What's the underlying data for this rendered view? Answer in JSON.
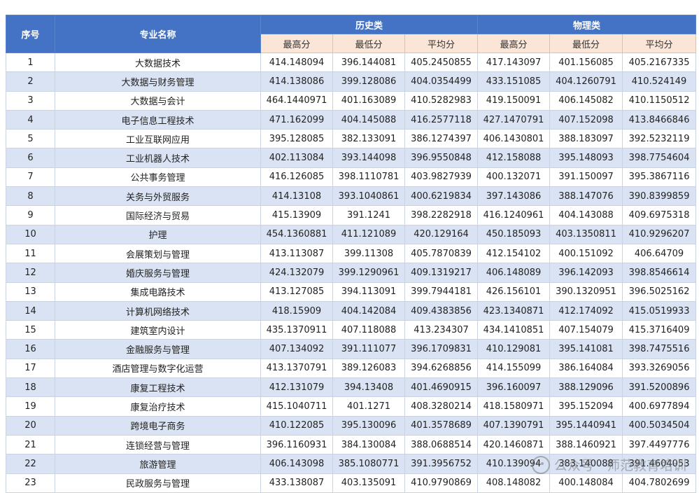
{
  "header": {
    "col_no": "序号",
    "col_name": "专业名称",
    "group_history": "历史类",
    "group_physics": "物理类",
    "sub_max": "最高分",
    "sub_min": "最低分",
    "sub_avg": "平均分"
  },
  "rows": [
    {
      "no": "1",
      "name": "大数据技术",
      "h_max": "414.148094",
      "h_min": "396.144081",
      "h_avg": "405.2450855",
      "p_max": "417.143097",
      "p_min": "401.156085",
      "p_avg": "405.2167335"
    },
    {
      "no": "2",
      "name": "大数据与财务管理",
      "h_max": "414.138086",
      "h_min": "399.128086",
      "h_avg": "404.0354499",
      "p_max": "433.151085",
      "p_min": "404.1260791",
      "p_avg": "410.524149"
    },
    {
      "no": "3",
      "name": "大数据与会计",
      "h_max": "464.1440971",
      "h_min": "401.163089",
      "h_avg": "410.5282983",
      "p_max": "419.150091",
      "p_min": "406.145082",
      "p_avg": "410.1150512"
    },
    {
      "no": "4",
      "name": "电子信息工程技术",
      "h_max": "471.162099",
      "h_min": "404.145088",
      "h_avg": "416.2577118",
      "p_max": "427.1470791",
      "p_min": "407.152098",
      "p_avg": "413.8466846"
    },
    {
      "no": "5",
      "name": "工业互联网应用",
      "h_max": "395.128085",
      "h_min": "382.133091",
      "h_avg": "386.1274397",
      "p_max": "406.1430801",
      "p_min": "388.183097",
      "p_avg": "392.5232119"
    },
    {
      "no": "6",
      "name": "工业机器人技术",
      "h_max": "402.113084",
      "h_min": "393.144098",
      "h_avg": "396.9550848",
      "p_max": "412.158088",
      "p_min": "395.148093",
      "p_avg": "398.7754604"
    },
    {
      "no": "7",
      "name": "公共事务管理",
      "h_max": "416.126085",
      "h_min": "398.1110781",
      "h_avg": "403.9827939",
      "p_max": "400.132071",
      "p_min": "391.150097",
      "p_avg": "395.3867116"
    },
    {
      "no": "8",
      "name": "关务与外贸服务",
      "h_max": "414.13108",
      "h_min": "393.1040861",
      "h_avg": "400.6219834",
      "p_max": "397.143086",
      "p_min": "388.147076",
      "p_avg": "390.8399859"
    },
    {
      "no": "9",
      "name": "国际经济与贸易",
      "h_max": "415.13909",
      "h_min": "391.1241",
      "h_avg": "398.2282918",
      "p_max": "416.1240961",
      "p_min": "404.143088",
      "p_avg": "409.6975318"
    },
    {
      "no": "10",
      "name": "护理",
      "h_max": "454.1360881",
      "h_min": "411.121089",
      "h_avg": "420.129164",
      "p_max": "450.185093",
      "p_min": "403.1350811",
      "p_avg": "410.9296207"
    },
    {
      "no": "11",
      "name": "会展策划与管理",
      "h_max": "413.113087",
      "h_min": "399.11308",
      "h_avg": "405.7870839",
      "p_max": "412.154102",
      "p_min": "400.151092",
      "p_avg": "406.64709"
    },
    {
      "no": "12",
      "name": "婚庆服务与管理",
      "h_max": "424.132079",
      "h_min": "399.1290961",
      "h_avg": "409.1319217",
      "p_max": "406.148089",
      "p_min": "396.142093",
      "p_avg": "398.8546614"
    },
    {
      "no": "13",
      "name": "集成电路技术",
      "h_max": "413.127085",
      "h_min": "394.113091",
      "h_avg": "399.7944181",
      "p_max": "426.156101",
      "p_min": "390.1320951",
      "p_avg": "396.5025162"
    },
    {
      "no": "14",
      "name": "计算机网络技术",
      "h_max": "418.15909",
      "h_min": "404.142084",
      "h_avg": "409.4383856",
      "p_max": "423.1340871",
      "p_min": "412.174092",
      "p_avg": "415.0519933"
    },
    {
      "no": "15",
      "name": "建筑室内设计",
      "h_max": "435.1370911",
      "h_min": "407.118088",
      "h_avg": "413.234307",
      "p_max": "434.1410851",
      "p_min": "407.154079",
      "p_avg": "415.3716409"
    },
    {
      "no": "16",
      "name": "金融服务与管理",
      "h_max": "407.134092",
      "h_min": "391.111077",
      "h_avg": "396.1709831",
      "p_max": "410.129081",
      "p_min": "395.141081",
      "p_avg": "398.7475516"
    },
    {
      "no": "17",
      "name": "酒店管理与数字化运营",
      "h_max": "413.1370791",
      "h_min": "389.126083",
      "h_avg": "394.6268856",
      "p_max": "414.155099",
      "p_min": "386.164084",
      "p_avg": "393.3269056"
    },
    {
      "no": "18",
      "name": "康复工程技术",
      "h_max": "412.131079",
      "h_min": "394.13408",
      "h_avg": "401.4690915",
      "p_max": "396.160097",
      "p_min": "388.129096",
      "p_avg": "391.5200896"
    },
    {
      "no": "19",
      "name": "康复治疗技术",
      "h_max": "415.1040711",
      "h_min": "401.1271",
      "h_avg": "408.3280214",
      "p_max": "418.1580971",
      "p_min": "395.152094",
      "p_avg": "400.6977894"
    },
    {
      "no": "20",
      "name": "跨境电子商务",
      "h_max": "410.122085",
      "h_min": "395.130096",
      "h_avg": "401.3578689",
      "p_max": "407.1390791",
      "p_min": "395.1440941",
      "p_avg": "400.5034504"
    },
    {
      "no": "21",
      "name": "连锁经营与管理",
      "h_max": "396.1160931",
      "h_min": "384.130084",
      "h_avg": "388.0688514",
      "p_max": "420.1460871",
      "p_min": "388.1460921",
      "p_avg": "397.4497776"
    },
    {
      "no": "22",
      "name": "旅游管理",
      "h_max": "406.143098",
      "h_min": "385.1080771",
      "h_avg": "391.3956752",
      "p_max": "410.139094",
      "p_min": "383.140088",
      "p_avg": "391.4604053"
    },
    {
      "no": "23",
      "name": "民政服务与管理",
      "h_max": "433.138087",
      "h_min": "403.135091",
      "h_avg": "410.9790869",
      "p_max": "408.148082",
      "p_min": "400.148084",
      "p_avg": "404.7802699"
    }
  ],
  "watermark": {
    "text": "公众号 · 师范教育培训",
    "icon": "wechat-icon"
  },
  "colors": {
    "header_blue": "#4472c4",
    "subheader_peach": "#fbe5d6",
    "row_alt_blue": "#dae3f3"
  }
}
